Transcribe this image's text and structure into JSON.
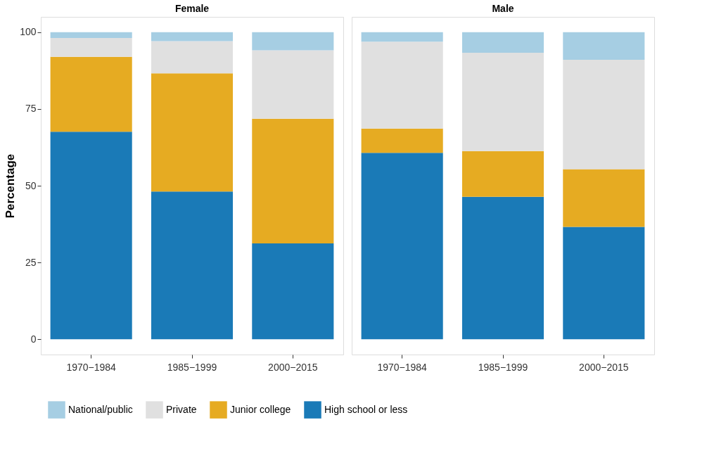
{
  "chart_data": [
    {
      "type": "bar",
      "title": "Female",
      "ylabel": "Percentage",
      "categories": [
        "1970−1984",
        "1985−1999",
        "2000−2015"
      ],
      "stacked": true,
      "ylim": [
        -5,
        105
      ],
      "yticks": [
        0,
        25,
        50,
        75,
        100
      ],
      "grid": false,
      "legend": "bottom",
      "series": [
        {
          "name": "High school or less",
          "color": "#1a7ab7",
          "values": [
            67.6,
            48.1,
            31.2
          ]
        },
        {
          "name": "Junior college",
          "color": "#e6ab22",
          "values": [
            24.4,
            38.5,
            40.6
          ]
        },
        {
          "name": "Private",
          "color": "#e0e0e0",
          "values": [
            6.1,
            10.5,
            22.3
          ]
        },
        {
          "name": "National/public",
          "color": "#a6cee3",
          "values": [
            1.9,
            2.9,
            5.9
          ]
        }
      ]
    },
    {
      "type": "bar",
      "title": "Male",
      "categories": [
        "1970−1984",
        "1985−1999",
        "2000−2015"
      ],
      "stacked": true,
      "ylim": [
        -5,
        105
      ],
      "yticks": [
        0,
        25,
        50,
        75,
        100
      ],
      "grid": false,
      "legend": "bottom",
      "tick_labels": "x",
      "series": [
        {
          "name": "High school or less",
          "color": "#1a7ab7",
          "values": [
            60.7,
            46.4,
            36.6
          ]
        },
        {
          "name": "Junior college",
          "color": "#e6ab22",
          "values": [
            7.9,
            14.9,
            18.8
          ]
        },
        {
          "name": "Private",
          "color": "#e0e0e0",
          "values": [
            28.3,
            32.0,
            35.6
          ]
        },
        {
          "name": "National/public",
          "color": "#a6cee3",
          "values": [
            3.1,
            6.7,
            9.0
          ]
        }
      ]
    }
  ]
}
